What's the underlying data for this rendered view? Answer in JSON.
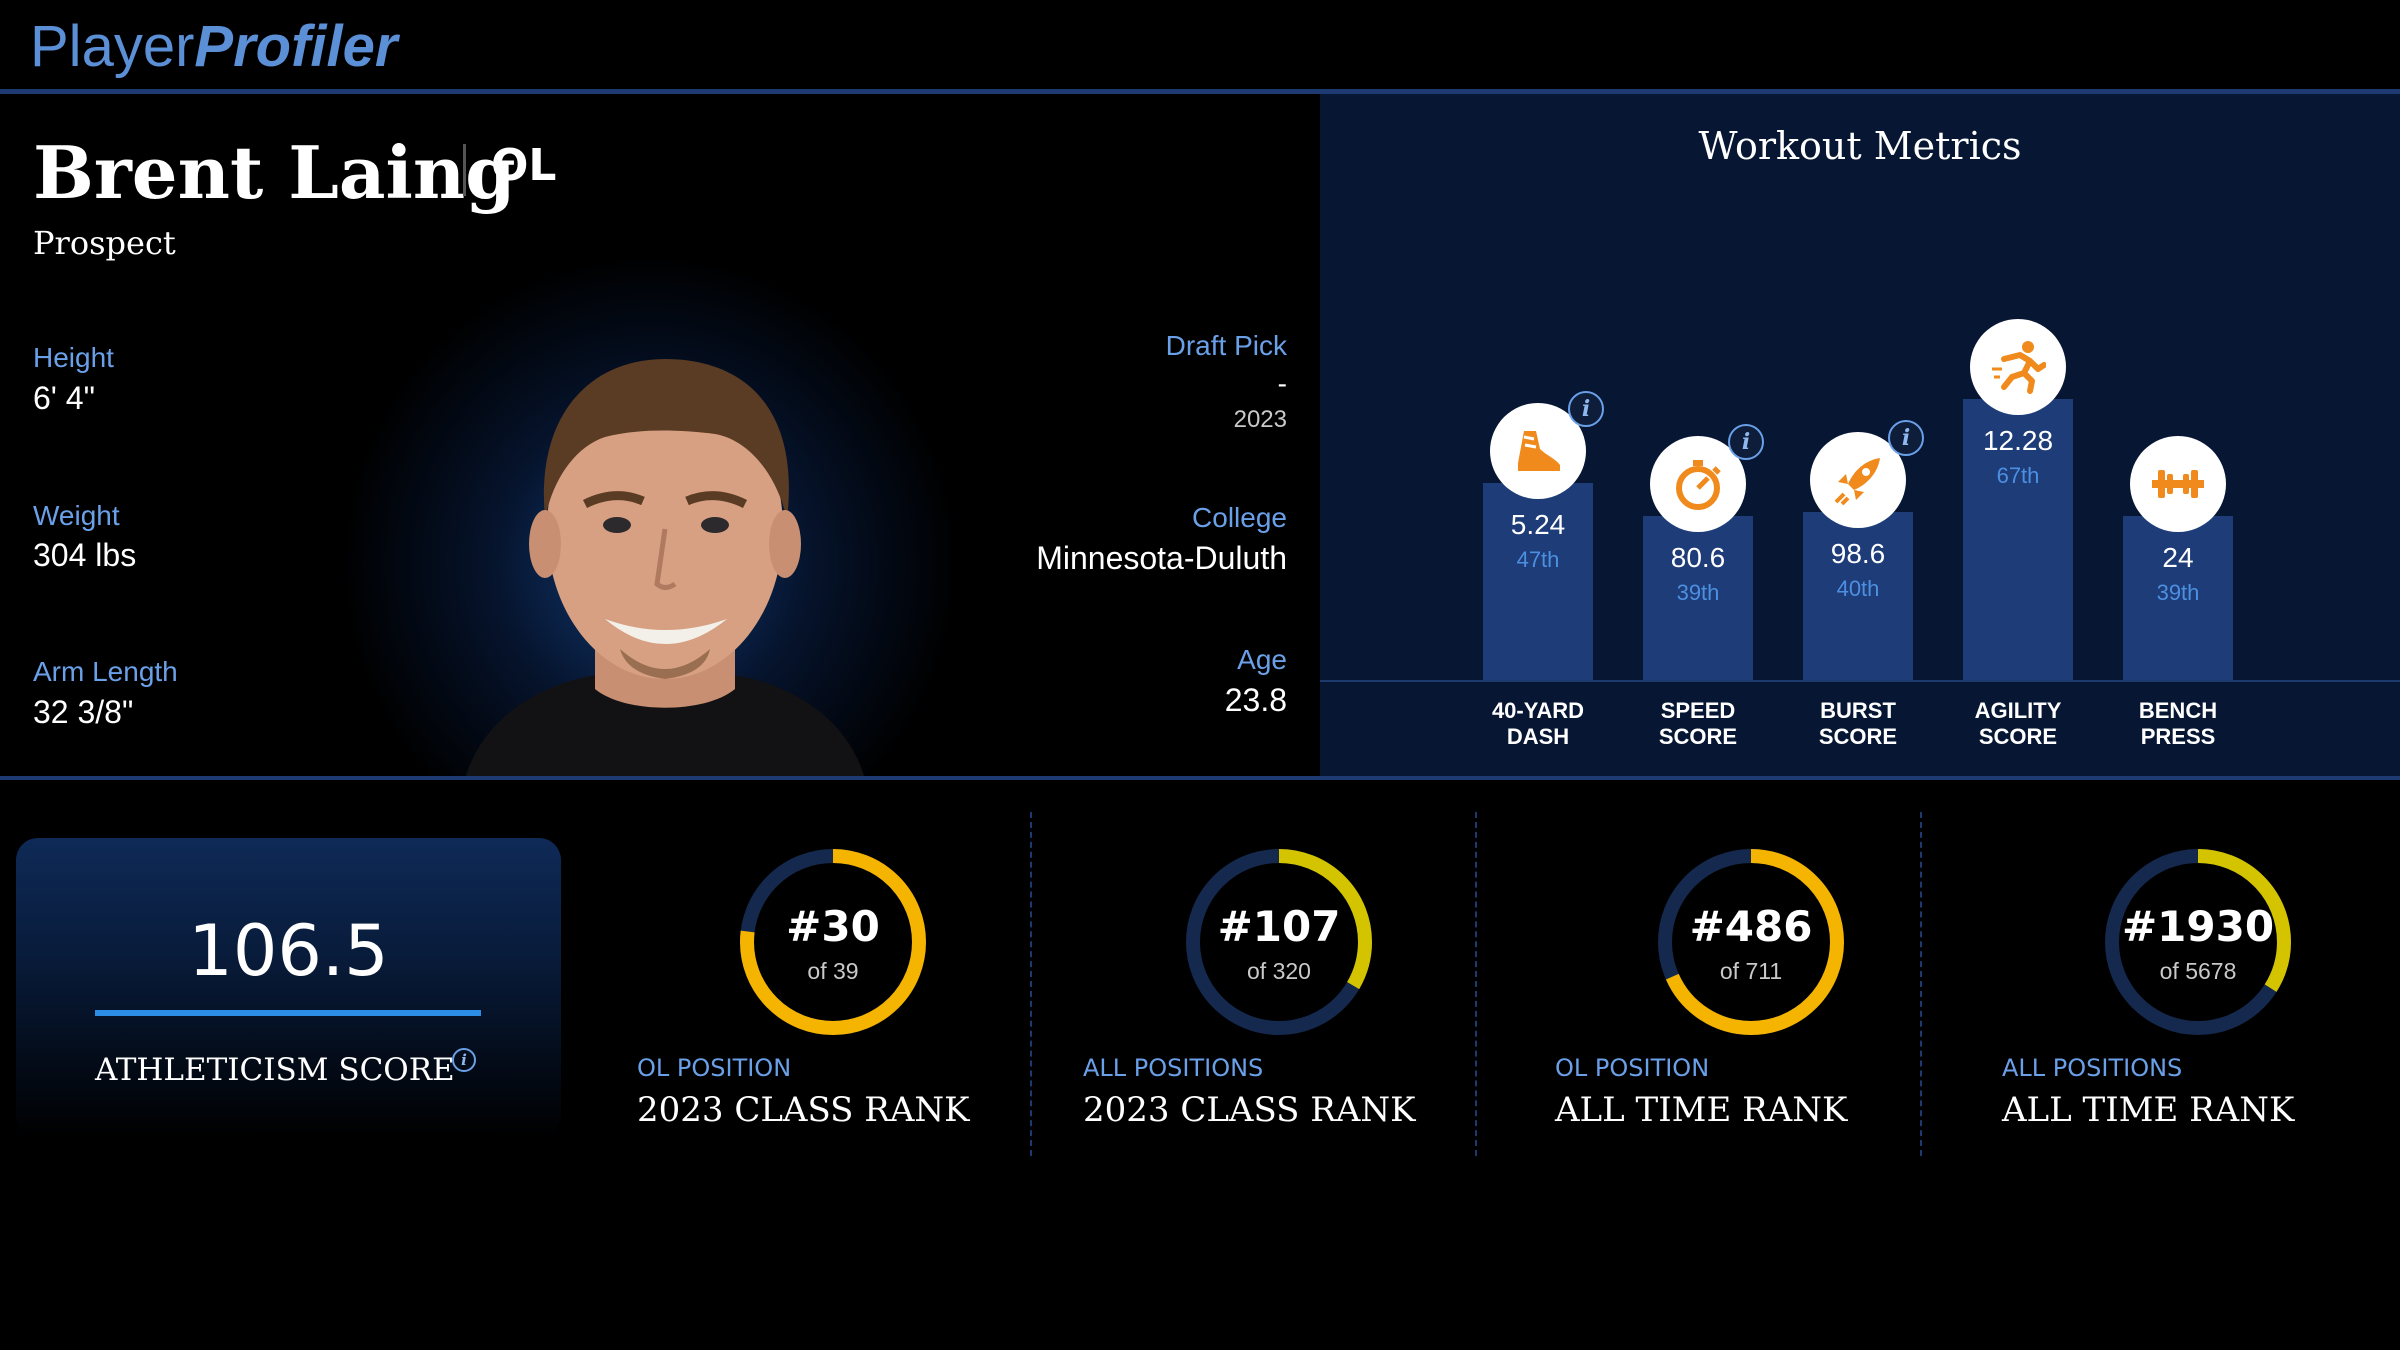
{
  "brand": {
    "part1": "Player",
    "part2": "Profiler",
    "color": "#5b8fd6"
  },
  "player": {
    "name": "Brent Laing",
    "position": "OL",
    "status": "Prospect",
    "height_label": "Height",
    "height": "6' 4\"",
    "weight_label": "Weight",
    "weight": "304 lbs",
    "arm_label": "Arm Length",
    "arm": "32 3/8\"",
    "pick_label": "Draft Pick",
    "pick": "-",
    "pick_year": "2023",
    "college_label": "College",
    "college": "Minnesota-Duluth",
    "age_label": "Age",
    "age": "23.8"
  },
  "workout": {
    "title": "Workout Metrics",
    "metrics": [
      {
        "line1": "40-YARD",
        "line2": "DASH",
        "value": "5.24",
        "percentile": "47th",
        "pct": 47,
        "icon": "shoe-icon",
        "info": true
      },
      {
        "line1": "SPEED",
        "line2": "SCORE",
        "value": "80.6",
        "percentile": "39th",
        "pct": 39,
        "icon": "stopwatch-icon",
        "info": true
      },
      {
        "line1": "BURST",
        "line2": "SCORE",
        "value": "98.6",
        "percentile": "40th",
        "pct": 40,
        "icon": "rocket-icon",
        "info": true
      },
      {
        "line1": "AGILITY",
        "line2": "SCORE",
        "value": "12.28",
        "percentile": "67th",
        "pct": 67,
        "icon": "runner-icon",
        "info": false
      },
      {
        "line1": "BENCH",
        "line2": "PRESS",
        "value": "24",
        "percentile": "39th",
        "pct": 39,
        "icon": "barbell-icon",
        "info": false
      }
    ]
  },
  "athleticism": {
    "score": "106.5",
    "label": "ATHLETICISM SCORE"
  },
  "ranks": [
    {
      "rank": "#30",
      "of": "of 39",
      "rank_value": 30,
      "total": 39,
      "sub": "OL POSITION",
      "title": "2023 CLASS RANK",
      "color": "#f5b400"
    },
    {
      "rank": "#107",
      "of": "of 320",
      "rank_value": 107,
      "total": 320,
      "sub": "ALL POSITIONS",
      "title": "2023 CLASS RANK",
      "color": "#d4c400"
    },
    {
      "rank": "#486",
      "of": "of 711",
      "rank_value": 486,
      "total": 711,
      "sub": "OL POSITION",
      "title": "ALL TIME RANK",
      "color": "#f5b400"
    },
    {
      "rank": "#1930",
      "of": "of 5678",
      "rank_value": 1930,
      "total": 5678,
      "sub": "ALL POSITIONS",
      "title": "ALL TIME RANK",
      "color": "#d4c400"
    }
  ],
  "colors": {
    "accent_orange": "#f08a1c",
    "ring_track": "#15284d",
    "panel_blue": "#061633",
    "bar_blue": "#1d3c78"
  }
}
